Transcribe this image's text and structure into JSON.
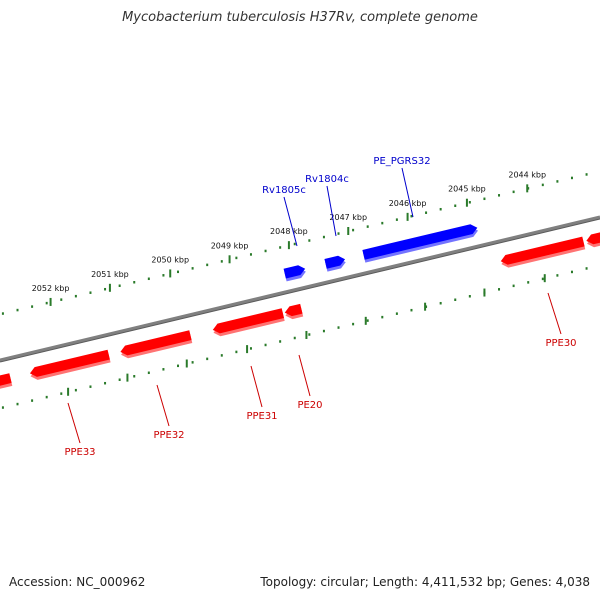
{
  "title": "Mycobacterium tuberculosis H37Rv, complete genome",
  "footer": {
    "accession": "Accession: NC_000962",
    "summary": "Topology: circular; Length: 4,411,532 bp; Genes: 4,038"
  },
  "colors": {
    "forward_strand": "#0000ff",
    "reverse_strand": "#ff0000",
    "backbone": "#808080",
    "ticks": "#2a7a2a"
  },
  "kbp_ticks": [
    "2044 kbp",
    "2045 kbp",
    "2046 kbp",
    "2047 kbp",
    "2048 kbp",
    "2049 kbp",
    "2050 kbp",
    "2051 kbp",
    "2052 kbp"
  ],
  "forward_genes": [
    {
      "name": "PE_PGRS32",
      "strand": "+"
    },
    {
      "name": "Rv1804c",
      "strand": "+"
    },
    {
      "name": "Rv1805c",
      "strand": "+"
    }
  ],
  "reverse_genes": [
    {
      "name": "PPE30",
      "strand": "-"
    },
    {
      "name": "PE20",
      "strand": "-"
    },
    {
      "name": "PPE31",
      "strand": "-"
    },
    {
      "name": "PPE32",
      "strand": "-"
    },
    {
      "name": "PPE33",
      "strand": "-"
    }
  ]
}
